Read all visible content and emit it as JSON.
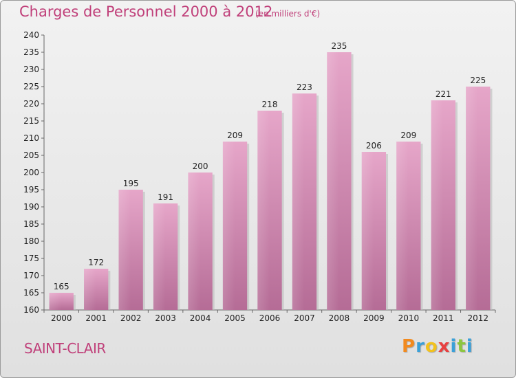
{
  "header": {
    "title": "Charges de Personnel 2000 à 2012",
    "unit_note": "(en milliers d'€)"
  },
  "footer": {
    "place": "SAINT-CLAIR",
    "logo_letters": [
      "P",
      "r",
      "o",
      "x",
      "i",
      "t",
      "i"
    ],
    "logo_colors": [
      "#f28a1e",
      "#3aa0d8",
      "#f2c21e",
      "#e84040",
      "#3aa0d8",
      "#8cc63f",
      "#3aa0d8"
    ]
  },
  "chart_data": {
    "type": "bar",
    "categories": [
      "2000",
      "2001",
      "2002",
      "2003",
      "2004",
      "2005",
      "2006",
      "2007",
      "2008",
      "2009",
      "2010",
      "2011",
      "2012"
    ],
    "values": [
      165,
      172,
      195,
      191,
      200,
      209,
      218,
      223,
      235,
      206,
      209,
      221,
      225
    ],
    "title": "Charges de Personnel 2000 à 2012",
    "subtitle": "(en milliers d'€)",
    "ylim": [
      160,
      240
    ],
    "ytick_step": 5,
    "grid": false,
    "legend": "none",
    "colors": {
      "bar": "#d98bb5",
      "bar_dark": "#b56c96",
      "accent": "#c0407a"
    }
  }
}
